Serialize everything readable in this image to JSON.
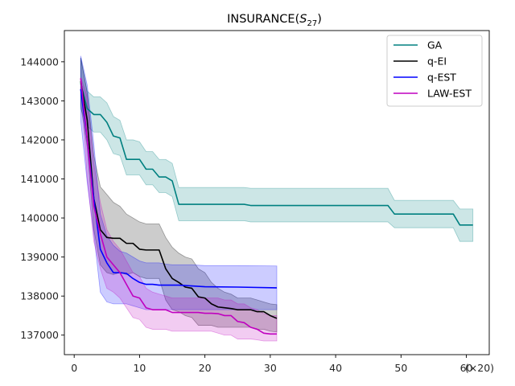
{
  "chart_data": {
    "type": "line",
    "title_main": "INSURANCE(",
    "title_sym": "S",
    "title_sub": "27",
    "title_close": ")",
    "x_multiplier_label": "(×20)",
    "xlim": [
      -1.5,
      63.5
    ],
    "ylim": [
      136500,
      144800
    ],
    "x_ticks": [
      0,
      10,
      20,
      30,
      40,
      50,
      60
    ],
    "x_tick_labels": [
      "0",
      "10",
      "20",
      "30",
      "40",
      "50",
      "60"
    ],
    "y_ticks": [
      137000,
      138000,
      139000,
      140000,
      141000,
      142000,
      143000,
      144000
    ],
    "y_tick_labels": [
      "137000",
      "138000",
      "139000",
      "140000",
      "141000",
      "142000",
      "143000",
      "144000"
    ],
    "legend": {
      "position": "upper right",
      "entries": [
        "GA",
        "q-EI",
        "q-EST",
        "LAW-EST"
      ]
    },
    "series": [
      {
        "name": "GA",
        "color": "#008080",
        "x": [
          1,
          2,
          3,
          4,
          5,
          6,
          7,
          8,
          9,
          10,
          11,
          12,
          13,
          14,
          15,
          16,
          20,
          26,
          27,
          48,
          49,
          57,
          58,
          59,
          61
        ],
        "mean": [
          143450,
          142800,
          142650,
          142650,
          142450,
          142100,
          142050,
          141500,
          141500,
          141500,
          141250,
          141250,
          141050,
          141050,
          140950,
          140350,
          140350,
          140350,
          140320,
          140320,
          140100,
          140100,
          140100,
          139820,
          139820
        ],
        "upper": [
          144100,
          143250,
          143100,
          143100,
          142950,
          142600,
          142500,
          142000,
          142000,
          141950,
          141700,
          141700,
          141500,
          141500,
          141400,
          140780,
          140780,
          140780,
          140760,
          140760,
          140450,
          140450,
          140450,
          140230,
          140230
        ],
        "lower": [
          142800,
          142350,
          142200,
          142200,
          142000,
          141650,
          141600,
          141100,
          141100,
          141100,
          140850,
          140850,
          140650,
          140650,
          140550,
          139930,
          139930,
          139930,
          139900,
          139900,
          139750,
          139750,
          139750,
          139400,
          139400
        ]
      },
      {
        "name": "q-EI",
        "color": "#000000",
        "x": [
          1,
          2,
          3,
          4,
          5,
          6,
          7,
          8,
          9,
          10,
          11,
          12,
          13,
          14,
          15,
          16,
          17,
          18,
          19,
          20,
          21,
          22,
          23,
          24,
          25,
          26,
          27,
          28,
          29,
          30,
          31
        ],
        "mean": [
          143500,
          142500,
          140500,
          139700,
          139500,
          139480,
          139480,
          139350,
          139350,
          139200,
          139180,
          139180,
          139180,
          138700,
          138450,
          138350,
          138230,
          138200,
          137980,
          137950,
          137800,
          137720,
          137700,
          137680,
          137650,
          137650,
          137650,
          137600,
          137600,
          137500,
          137430
        ],
        "upper": [
          144100,
          143200,
          141600,
          140800,
          140600,
          140400,
          140300,
          140100,
          140000,
          139900,
          139850,
          139850,
          139850,
          139500,
          139250,
          139100,
          139000,
          138950,
          138700,
          138600,
          138350,
          138200,
          138100,
          138050,
          137950,
          137950,
          137950,
          137900,
          137850,
          137800,
          137780
        ],
        "lower": [
          142900,
          141800,
          139700,
          138800,
          138600,
          138550,
          138600,
          138550,
          138600,
          138500,
          138450,
          138450,
          138450,
          137900,
          137650,
          137600,
          137500,
          137450,
          137250,
          137250,
          137250,
          137200,
          137200,
          137200,
          137200,
          137200,
          137200,
          137150,
          137150,
          137100,
          137080
        ]
      },
      {
        "name": "q-EST",
        "color": "#0000ff",
        "x": [
          1,
          2,
          3,
          4,
          5,
          6,
          7,
          8,
          9,
          10,
          11,
          12,
          13,
          14,
          15,
          16,
          17,
          18,
          19,
          20,
          25,
          31
        ],
        "mean": [
          143300,
          142000,
          140500,
          139200,
          138850,
          138600,
          138600,
          138580,
          138450,
          138350,
          138300,
          138300,
          138280,
          138280,
          138280,
          138280,
          138270,
          138260,
          138250,
          138240,
          138230,
          138210
        ],
        "upper": [
          144150,
          143400,
          141900,
          140100,
          139550,
          139300,
          139150,
          139100,
          139000,
          138900,
          138850,
          138850,
          138850,
          138820,
          138800,
          138800,
          138800,
          138800,
          138790,
          138780,
          138780,
          138770
        ],
        "lower": [
          142500,
          140900,
          139600,
          138100,
          137850,
          137800,
          137800,
          137800,
          137750,
          137700,
          137650,
          137650,
          137650,
          137650,
          137650,
          137650,
          137650,
          137650,
          137650,
          137650,
          137650,
          137650
        ]
      },
      {
        "name": "LAW-EST",
        "color": "#bf00bf",
        "x": [
          1,
          2,
          3,
          4,
          5,
          6,
          7,
          8,
          9,
          10,
          11,
          12,
          13,
          14,
          15,
          16,
          17,
          18,
          19,
          20,
          21,
          22,
          23,
          24,
          25,
          26,
          27,
          28,
          29,
          30,
          31
        ],
        "mean": [
          143580,
          142000,
          140300,
          139600,
          139000,
          138800,
          138600,
          138300,
          138000,
          137950,
          137700,
          137650,
          137650,
          137650,
          137580,
          137580,
          137580,
          137580,
          137580,
          137560,
          137560,
          137550,
          137500,
          137500,
          137350,
          137320,
          137200,
          137150,
          137050,
          137030,
          137030
        ],
        "upper": [
          143600,
          143100,
          141400,
          140400,
          139700,
          139400,
          139200,
          138900,
          138600,
          138500,
          138200,
          138100,
          138050,
          138000,
          137950,
          137950,
          137950,
          137950,
          137950,
          137950,
          137950,
          137950,
          137900,
          137900,
          137800,
          137800,
          137700,
          137650,
          137550,
          137500,
          137500
        ],
        "lower": [
          143500,
          141000,
          139400,
          138700,
          138200,
          138100,
          137950,
          137700,
          137450,
          137400,
          137200,
          137150,
          137150,
          137150,
          137100,
          137100,
          137100,
          137100,
          137100,
          137100,
          137100,
          137050,
          137000,
          137000,
          136900,
          136900,
          136900,
          136880,
          136850,
          136850,
          136850
        ]
      }
    ]
  }
}
